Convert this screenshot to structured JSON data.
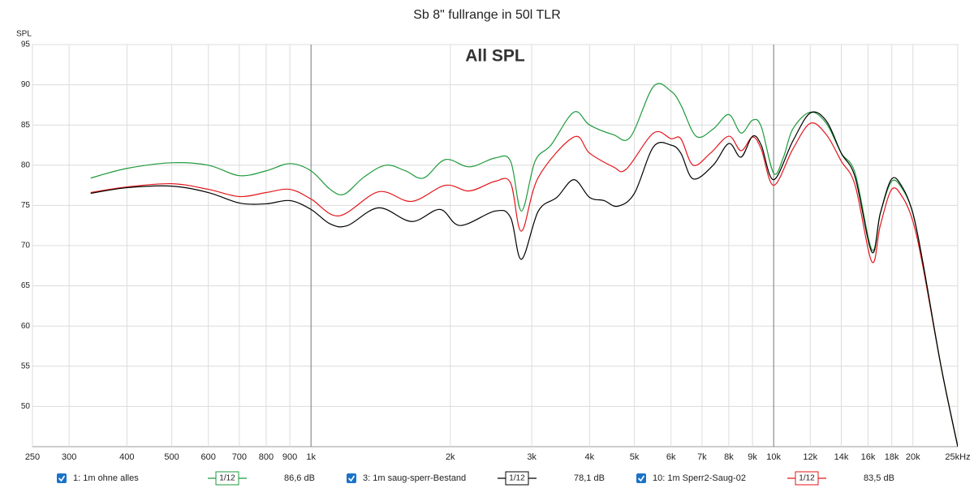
{
  "chart_data": {
    "type": "line",
    "title": "Sb 8\" fullrange in 50l TLR",
    "annotation": "All SPL",
    "ylabel": "SPL",
    "xscale": "log",
    "grid": true,
    "xlim": [
      250,
      25000
    ],
    "ylim": [
      45,
      95
    ],
    "yticks": [
      50,
      55,
      60,
      65,
      70,
      75,
      80,
      85,
      90,
      95
    ],
    "xticks": [
      250,
      300,
      400,
      500,
      600,
      700,
      800,
      900,
      {
        "value": 1000,
        "label": "1k"
      },
      {
        "value": 2000,
        "label": "2k"
      },
      {
        "value": 3000,
        "label": "3k"
      },
      {
        "value": 4000,
        "label": "4k"
      },
      {
        "value": 5000,
        "label": "5k"
      },
      {
        "value": 6000,
        "label": "6k"
      },
      {
        "value": 7000,
        "label": "7k"
      },
      {
        "value": 8000,
        "label": "8k"
      },
      {
        "value": 9000,
        "label": "9k"
      },
      {
        "value": 10000,
        "label": "10k"
      },
      {
        "value": 12000,
        "label": "12k"
      },
      {
        "value": 14000,
        "label": "14k"
      },
      {
        "value": 16000,
        "label": "16k"
      },
      {
        "value": 18000,
        "label": "18k"
      },
      {
        "value": 20000,
        "label": "20k"
      },
      {
        "value": 25000,
        "label": "25kHz"
      }
    ],
    "series": [
      {
        "name": "1: 1m ohne alles",
        "color": "#1e9a3c",
        "smoothing": "1/12",
        "readout": "86,6 dB",
        "x": [
          334,
          400,
          500,
          600,
          700,
          800,
          900,
          1000,
          1100,
          1180,
          1300,
          1450,
          1600,
          1750,
          1950,
          2200,
          2500,
          2700,
          2850,
          3050,
          3300,
          3700,
          4000,
          4500,
          4900,
          5500,
          6000,
          6300,
          6800,
          7400,
          8000,
          8500,
          9000,
          9400,
          10000,
          10500,
          11000,
          12000,
          13000,
          14000,
          15000,
          16300,
          17000,
          18000,
          19000,
          20000,
          21000,
          23000,
          25000
        ],
        "values": [
          78.4,
          79.6,
          80.3,
          80.0,
          78.7,
          79.3,
          80.2,
          79.3,
          77.0,
          76.4,
          78.5,
          80.0,
          79.3,
          78.4,
          80.7,
          79.8,
          80.9,
          80.5,
          74.3,
          80.5,
          82.5,
          86.6,
          85.0,
          83.8,
          83.5,
          89.8,
          89.2,
          87.5,
          83.6,
          84.5,
          86.3,
          84.0,
          85.6,
          84.8,
          79.0,
          81.0,
          84.5,
          86.6,
          85.2,
          81.5,
          79.0,
          69.5,
          74,
          78.0,
          77,
          74,
          68,
          55,
          45
        ]
      },
      {
        "name": "3: 1m saug-sperr-Bestand",
        "color": "#000000",
        "smoothing": "1/12",
        "readout": "78,1 dB",
        "x": [
          334,
          400,
          500,
          600,
          700,
          800,
          900,
          1000,
          1100,
          1200,
          1400,
          1650,
          1900,
          2100,
          2500,
          2700,
          2850,
          3100,
          3400,
          3700,
          4000,
          4300,
          4600,
          5000,
          5500,
          6000,
          6300,
          6700,
          7400,
          8000,
          8500,
          9000,
          9400,
          10000,
          11000,
          12000,
          13000,
          14000,
          15000,
          16300,
          17000,
          18000,
          19000,
          20000,
          21000,
          23000,
          25000
        ],
        "values": [
          76.5,
          77.2,
          77.4,
          76.6,
          75.3,
          75.2,
          75.6,
          74.5,
          72.7,
          72.5,
          74.7,
          73.0,
          74.5,
          72.5,
          74.3,
          73.5,
          68.3,
          74.3,
          76,
          78.2,
          76.0,
          75.6,
          74.9,
          76.5,
          82.3,
          82.5,
          81.5,
          78.3,
          80,
          82.7,
          81.0,
          83.6,
          82.5,
          78.2,
          83,
          86.5,
          85.5,
          81.5,
          78.5,
          69.2,
          74,
          78.3,
          77.2,
          74,
          68,
          55,
          45
        ]
      },
      {
        "name": "10: 1m Sperr2-Saug-02",
        "color": "#e3161b",
        "smoothing": "1/12",
        "readout": "83,5 dB",
        "x": [
          334,
          400,
          500,
          600,
          700,
          800,
          900,
          1000,
          1150,
          1400,
          1650,
          1950,
          2200,
          2500,
          2700,
          2850,
          3100,
          3700,
          4000,
          4500,
          4800,
          5500,
          6000,
          6300,
          6700,
          7300,
          8000,
          8500,
          9000,
          9400,
          10000,
          11000,
          12000,
          13000,
          14000,
          15000,
          16300,
          17000,
          18000,
          19000,
          20000,
          21000,
          23000,
          25000
        ],
        "values": [
          76.6,
          77.3,
          77.7,
          77.0,
          76.1,
          76.6,
          77.0,
          75.8,
          73.7,
          76.7,
          75.5,
          77.5,
          76.8,
          78.0,
          77.8,
          71.8,
          78.5,
          83.5,
          81.5,
          79.8,
          79.5,
          84.0,
          83.3,
          83.3,
          80.0,
          81.5,
          83.6,
          81.8,
          83.5,
          82,
          77.5,
          82,
          85.2,
          83.8,
          80.5,
          77.5,
          68.0,
          72.5,
          77.0,
          76,
          73,
          67.5,
          55,
          45
        ]
      }
    ]
  }
}
